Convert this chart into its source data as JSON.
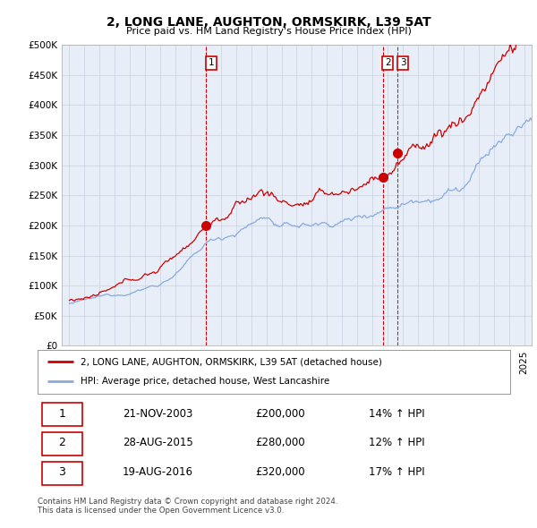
{
  "title": "2, LONG LANE, AUGHTON, ORMSKIRK, L39 5AT",
  "subtitle": "Price paid vs. HM Land Registry's House Price Index (HPI)",
  "ylim": [
    0,
    500000
  ],
  "yticks": [
    0,
    50000,
    100000,
    150000,
    200000,
    250000,
    300000,
    350000,
    400000,
    450000,
    500000
  ],
  "background_color": "#ffffff",
  "chart_bg_color": "#e8eef8",
  "grid_color": "#c8d0e0",
  "red_line_color": "#cc0000",
  "blue_line_color": "#88aadd",
  "vline_color_red": "#cc0000",
  "vline_color_dark": "#555555",
  "transactions": [
    {
      "label": "1",
      "date_num": 2004.0,
      "price": 200000,
      "date_str": "21-NOV-2003",
      "hpi_pct": "14%",
      "vline_style": "red"
    },
    {
      "label": "2",
      "date_num": 2015.67,
      "price": 280000,
      "date_str": "28-AUG-2015",
      "hpi_pct": "12%",
      "vline_style": "red"
    },
    {
      "label": "3",
      "date_num": 2016.65,
      "price": 320000,
      "date_str": "19-AUG-2016",
      "hpi_pct": "17%",
      "vline_style": "dark"
    }
  ],
  "legend_entries": [
    {
      "label": "2, LONG LANE, AUGHTON, ORMSKIRK, L39 5AT (detached house)",
      "color": "#cc0000"
    },
    {
      "label": "HPI: Average price, detached house, West Lancashire",
      "color": "#88aadd"
    }
  ],
  "footer": "Contains HM Land Registry data © Crown copyright and database right 2024.\nThis data is licensed under the Open Government Licence v3.0.",
  "xtick_start": 1995,
  "xtick_end": 2026,
  "xlim_start": 1994.5,
  "xlim_end": 2025.5
}
